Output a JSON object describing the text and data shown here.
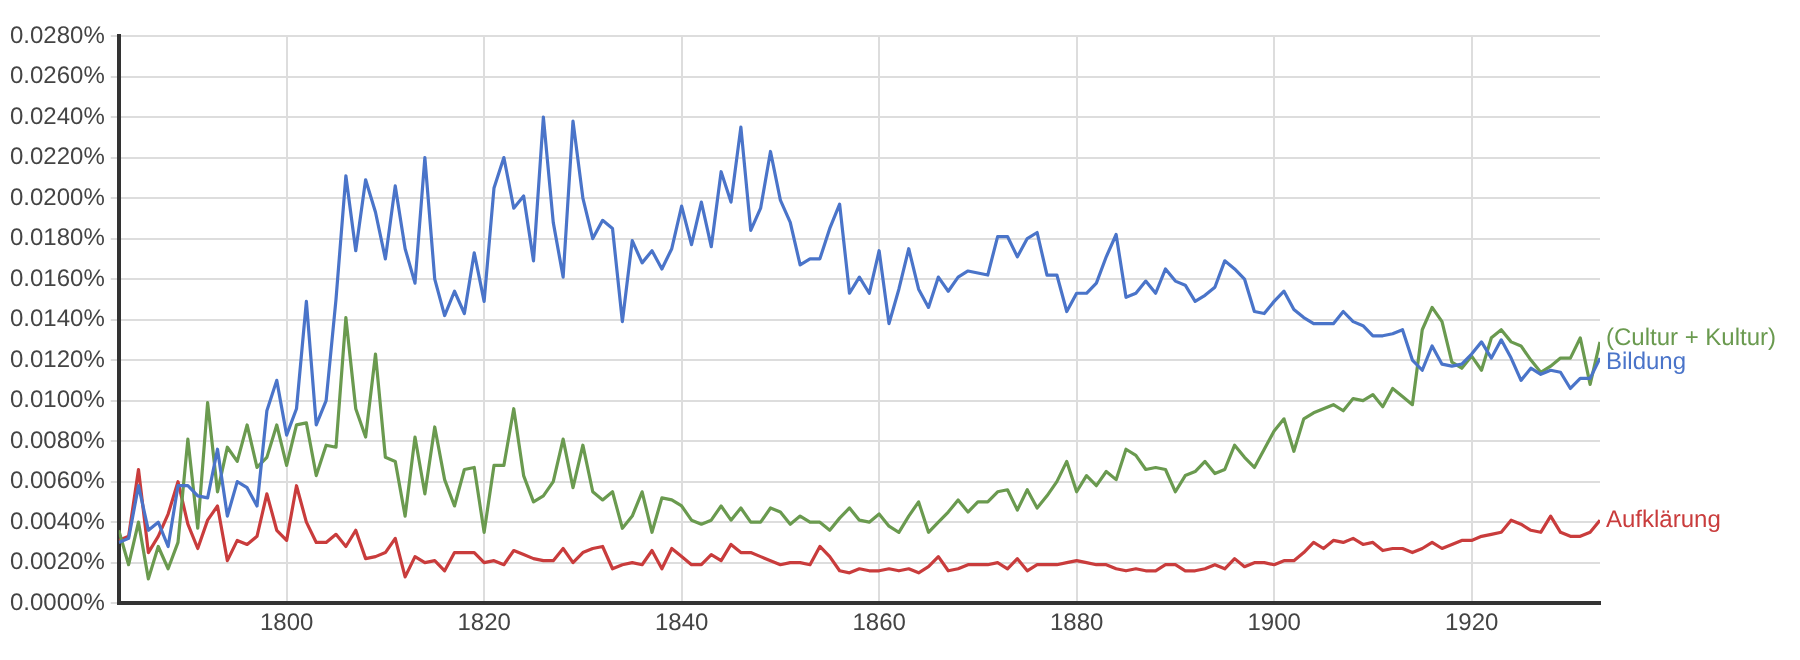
{
  "chart_data": {
    "type": "line",
    "x": [
      1783,
      1784,
      1785,
      1786,
      1787,
      1788,
      1789,
      1790,
      1791,
      1792,
      1793,
      1794,
      1795,
      1796,
      1797,
      1798,
      1799,
      1800,
      1801,
      1802,
      1803,
      1804,
      1805,
      1806,
      1807,
      1808,
      1809,
      1810,
      1811,
      1812,
      1813,
      1814,
      1815,
      1816,
      1817,
      1818,
      1819,
      1820,
      1821,
      1822,
      1823,
      1824,
      1825,
      1826,
      1827,
      1828,
      1829,
      1830,
      1831,
      1832,
      1833,
      1834,
      1835,
      1836,
      1837,
      1838,
      1839,
      1840,
      1841,
      1842,
      1843,
      1844,
      1845,
      1846,
      1847,
      1848,
      1849,
      1850,
      1851,
      1852,
      1853,
      1854,
      1855,
      1856,
      1857,
      1858,
      1859,
      1860,
      1861,
      1862,
      1863,
      1864,
      1865,
      1866,
      1867,
      1868,
      1869,
      1870,
      1871,
      1872,
      1873,
      1874,
      1875,
      1876,
      1877,
      1878,
      1879,
      1880,
      1881,
      1882,
      1883,
      1884,
      1885,
      1886,
      1887,
      1888,
      1889,
      1890,
      1891,
      1892,
      1893,
      1894,
      1895,
      1896,
      1897,
      1898,
      1899,
      1900,
      1901,
      1902,
      1903,
      1904,
      1905,
      1906,
      1907,
      1908,
      1909,
      1910,
      1911,
      1912,
      1913,
      1914,
      1915,
      1916,
      1917,
      1918,
      1919,
      1920,
      1921,
      1922,
      1923,
      1924,
      1925,
      1926,
      1927,
      1928,
      1929,
      1930,
      1931,
      1932,
      1933
    ],
    "series": [
      {
        "name": "Bildung",
        "color": "#4a74c9",
        "values": [
          0.003,
          0.0032,
          0.0058,
          0.0036,
          0.004,
          0.0028,
          0.0058,
          0.0058,
          0.0053,
          0.0052,
          0.0076,
          0.0043,
          0.006,
          0.0057,
          0.0048,
          0.0095,
          0.011,
          0.0083,
          0.0096,
          0.0149,
          0.0088,
          0.01,
          0.015,
          0.0211,
          0.0174,
          0.0209,
          0.0193,
          0.017,
          0.0206,
          0.0175,
          0.0158,
          0.022,
          0.016,
          0.0142,
          0.0154,
          0.0143,
          0.0173,
          0.0149,
          0.0205,
          0.022,
          0.0195,
          0.0201,
          0.0169,
          0.024,
          0.0188,
          0.0161,
          0.0238,
          0.02,
          0.018,
          0.0189,
          0.0185,
          0.0139,
          0.0179,
          0.0168,
          0.0174,
          0.0165,
          0.0175,
          0.0196,
          0.0177,
          0.0198,
          0.0176,
          0.0213,
          0.0198,
          0.0235,
          0.0184,
          0.0195,
          0.0223,
          0.0199,
          0.0188,
          0.0167,
          0.017,
          0.017,
          0.0185,
          0.0197,
          0.0153,
          0.0161,
          0.0153,
          0.0174,
          0.0138,
          0.0155,
          0.0175,
          0.0155,
          0.0146,
          0.0161,
          0.0154,
          0.0161,
          0.0164,
          0.0163,
          0.0162,
          0.0181,
          0.0181,
          0.0171,
          0.018,
          0.0183,
          0.0162,
          0.0162,
          0.0144,
          0.0153,
          0.0153,
          0.0158,
          0.0171,
          0.0182,
          0.0151,
          0.0153,
          0.0159,
          0.0153,
          0.0165,
          0.0159,
          0.0157,
          0.0149,
          0.0152,
          0.0156,
          0.0169,
          0.0165,
          0.016,
          0.0144,
          0.0143,
          0.0149,
          0.0154,
          0.0145,
          0.0141,
          0.0138,
          0.0138,
          0.0138,
          0.0144,
          0.0139,
          0.0137,
          0.0132,
          0.0132,
          0.0133,
          0.0135,
          0.012,
          0.0115,
          0.0127,
          0.0118,
          0.0117,
          0.0118,
          0.0123,
          0.0129,
          0.0121,
          0.013,
          0.0121,
          0.011,
          0.0116,
          0.0113,
          0.0115,
          0.0114,
          0.0106,
          0.0111,
          0.0111,
          0.0121
        ]
      },
      {
        "name": "(Cultur + Kultur)",
        "color": "#6a9a4f",
        "values": [
          0.0036,
          0.0019,
          0.004,
          0.0012,
          0.0028,
          0.0017,
          0.003,
          0.0081,
          0.0037,
          0.0099,
          0.0055,
          0.0077,
          0.007,
          0.0088,
          0.0067,
          0.0072,
          0.0088,
          0.0068,
          0.0088,
          0.0089,
          0.0063,
          0.0078,
          0.0077,
          0.0141,
          0.0096,
          0.0082,
          0.0123,
          0.0072,
          0.007,
          0.0043,
          0.0082,
          0.0054,
          0.0087,
          0.0061,
          0.0048,
          0.0066,
          0.0067,
          0.0035,
          0.0068,
          0.0068,
          0.0096,
          0.0063,
          0.005,
          0.0053,
          0.006,
          0.0081,
          0.0057,
          0.0078,
          0.0055,
          0.0051,
          0.0055,
          0.0037,
          0.0043,
          0.0055,
          0.0035,
          0.0052,
          0.0051,
          0.0048,
          0.0041,
          0.0039,
          0.0041,
          0.0048,
          0.0041,
          0.0047,
          0.004,
          0.004,
          0.0047,
          0.0045,
          0.0039,
          0.0043,
          0.004,
          0.004,
          0.0036,
          0.0042,
          0.0047,
          0.0041,
          0.004,
          0.0044,
          0.0038,
          0.0035,
          0.0043,
          0.005,
          0.0035,
          0.004,
          0.0045,
          0.0051,
          0.0045,
          0.005,
          0.005,
          0.0055,
          0.0056,
          0.0046,
          0.0056,
          0.0047,
          0.0053,
          0.006,
          0.007,
          0.0055,
          0.0063,
          0.0058,
          0.0065,
          0.0061,
          0.0076,
          0.0073,
          0.0066,
          0.0067,
          0.0066,
          0.0055,
          0.0063,
          0.0065,
          0.007,
          0.0064,
          0.0066,
          0.0078,
          0.0072,
          0.0067,
          0.0076,
          0.0085,
          0.0091,
          0.0075,
          0.0091,
          0.0094,
          0.0096,
          0.0098,
          0.0095,
          0.0101,
          0.01,
          0.0103,
          0.0097,
          0.0106,
          0.0102,
          0.0098,
          0.0135,
          0.0146,
          0.0139,
          0.0119,
          0.0116,
          0.0122,
          0.0115,
          0.0131,
          0.0135,
          0.0129,
          0.0127,
          0.012,
          0.0114,
          0.0117,
          0.0121,
          0.0121,
          0.0131,
          0.0108,
          0.0129
        ]
      },
      {
        "name": "Aufklärung",
        "color": "#c93c3c",
        "values": [
          0.0031,
          0.0033,
          0.0066,
          0.0025,
          0.0033,
          0.0044,
          0.006,
          0.0039,
          0.0027,
          0.0041,
          0.0048,
          0.0021,
          0.0031,
          0.0029,
          0.0033,
          0.0054,
          0.0036,
          0.0031,
          0.0058,
          0.004,
          0.003,
          0.003,
          0.0034,
          0.0028,
          0.0036,
          0.0022,
          0.0023,
          0.0025,
          0.0032,
          0.0013,
          0.0023,
          0.002,
          0.0021,
          0.0016,
          0.0025,
          0.0025,
          0.0025,
          0.002,
          0.0021,
          0.0019,
          0.0026,
          0.0024,
          0.0022,
          0.0021,
          0.0021,
          0.0027,
          0.002,
          0.0025,
          0.0027,
          0.0028,
          0.0017,
          0.0019,
          0.002,
          0.0019,
          0.0026,
          0.0017,
          0.0027,
          0.0023,
          0.0019,
          0.0019,
          0.0024,
          0.0021,
          0.0029,
          0.0025,
          0.0025,
          0.0023,
          0.0021,
          0.0019,
          0.002,
          0.002,
          0.0019,
          0.0028,
          0.0023,
          0.0016,
          0.0015,
          0.0017,
          0.0016,
          0.0016,
          0.0017,
          0.0016,
          0.0017,
          0.0015,
          0.0018,
          0.0023,
          0.0016,
          0.0017,
          0.0019,
          0.0019,
          0.0019,
          0.002,
          0.0017,
          0.0022,
          0.0016,
          0.0019,
          0.0019,
          0.0019,
          0.002,
          0.0021,
          0.002,
          0.0019,
          0.0019,
          0.0017,
          0.0016,
          0.0017,
          0.0016,
          0.0016,
          0.0019,
          0.0019,
          0.0016,
          0.0016,
          0.0017,
          0.0019,
          0.0017,
          0.0022,
          0.0018,
          0.002,
          0.002,
          0.0019,
          0.0021,
          0.0021,
          0.0025,
          0.003,
          0.0027,
          0.0031,
          0.003,
          0.0032,
          0.0029,
          0.003,
          0.0026,
          0.0027,
          0.0027,
          0.0025,
          0.0027,
          0.003,
          0.0027,
          0.0029,
          0.0031,
          0.0031,
          0.0033,
          0.0034,
          0.0035,
          0.0041,
          0.0039,
          0.0036,
          0.0035,
          0.0043,
          0.0035,
          0.0033,
          0.0033,
          0.0035,
          0.0041
        ]
      }
    ],
    "xlim": [
      1783,
      1933
    ],
    "xticks": [
      1800,
      1820,
      1840,
      1860,
      1880,
      1900,
      1920
    ],
    "ylim": [
      0,
      0.028
    ],
    "yticks": [
      {
        "value": 0,
        "label": "0.0000%"
      },
      {
        "value": 0.002,
        "label": "0.0020%"
      },
      {
        "value": 0.004,
        "label": "0.0040%"
      },
      {
        "value": 0.006,
        "label": "0.0060%"
      },
      {
        "value": 0.008,
        "label": "0.0080%"
      },
      {
        "value": 0.01,
        "label": "0.0100%"
      },
      {
        "value": 0.012,
        "label": "0.0120%"
      },
      {
        "value": 0.014,
        "label": "0.0140%"
      },
      {
        "value": 0.016,
        "label": "0.0160%"
      },
      {
        "value": 0.018,
        "label": "0.0180%"
      },
      {
        "value": 0.02,
        "label": "0.0200%"
      },
      {
        "value": 0.022,
        "label": "0.0220%"
      },
      {
        "value": 0.024,
        "label": "0.0240%"
      },
      {
        "value": 0.026,
        "label": "0.0260%"
      },
      {
        "value": 0.028,
        "label": "0.0280%"
      }
    ],
    "grid": true,
    "legend": false,
    "marker": "none",
    "line_style": "solid"
  }
}
